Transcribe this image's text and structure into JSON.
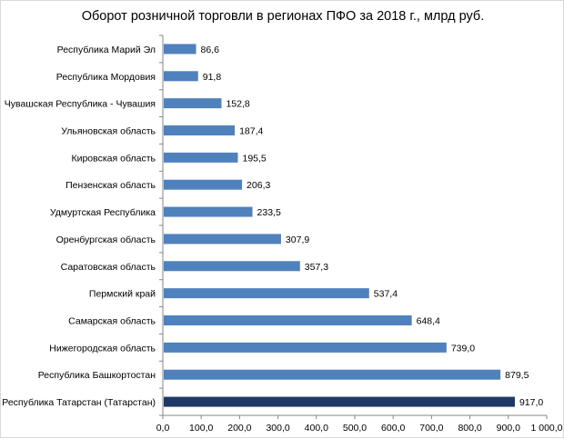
{
  "chart_data": {
    "type": "bar",
    "orientation": "horizontal",
    "title": "Оборот розничной  торговли в регионах  ПФО за 2018 г., млрд руб.",
    "xlabel": "",
    "ylabel": "",
    "xlim": [
      0,
      1000
    ],
    "xticks": [
      "0,0",
      "100,0",
      "200,0",
      "300,0",
      "400,0",
      "500,0",
      "600,0",
      "700,0",
      "800,0",
      "900,0",
      "1 000,0"
    ],
    "grid": false,
    "legend": "none",
    "categories": [
      "Республика Марий Эл",
      "Республика Мордовия",
      "Чувашская Республика - Чувашия",
      "Ульяновская область",
      "Кировская область",
      "Пензенская область",
      "Удмуртская Республика",
      "Оренбургская область",
      "Саратовская область",
      "Пермский край",
      "Самарская область",
      "Нижегородская область",
      "Республика Башкортостан",
      "Республика Татарстан (Татарстан)"
    ],
    "values": [
      86.6,
      91.8,
      152.8,
      187.4,
      195.5,
      206.3,
      233.5,
      307.9,
      357.3,
      537.4,
      648.4,
      739.0,
      879.5,
      917.0
    ],
    "value_labels": [
      "86,6",
      "91,8",
      "152,8",
      "187,4",
      "195,5",
      "206,3",
      "233,5",
      "307,9",
      "357,3",
      "537,4",
      "648,4",
      "739,0",
      "879,5",
      "917,0"
    ],
    "colors": {
      "bar": "#4f81bd",
      "highlight_bar": "#1f3864",
      "axis": "#868686"
    },
    "highlight_index": 13
  }
}
